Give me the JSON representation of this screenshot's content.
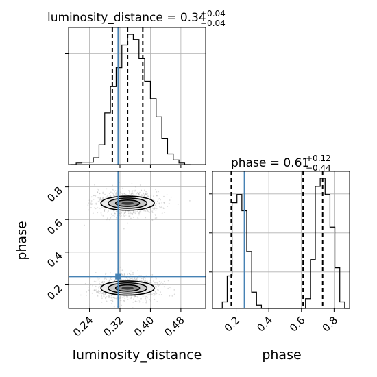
{
  "chart_data": [
    {
      "type": "histogram",
      "panel": "top-left",
      "title": {
        "text": "luminosity_distance = 0.34",
        "sup": "+0.04",
        "sub": "−0.04"
      },
      "xlim": [
        0.185,
        0.545
      ],
      "bin_edges": [
        0.19,
        0.205,
        0.22,
        0.235,
        0.25,
        0.265,
        0.28,
        0.295,
        0.31,
        0.325,
        0.34,
        0.355,
        0.37,
        0.385,
        0.4,
        0.415,
        0.43,
        0.445,
        0.46,
        0.475,
        0.49,
        0.505
      ],
      "counts": [
        0,
        2,
        3,
        3,
        9,
        26,
        68,
        103,
        128,
        158,
        172,
        165,
        140,
        110,
        87,
        63,
        34,
        14,
        6,
        2,
        0
      ],
      "quantiles": [
        0.3,
        0.34,
        0.38
      ],
      "truth": 0.315,
      "grid": true
    },
    {
      "type": "histogram",
      "panel": "bottom-right",
      "title": {
        "text": "phase = 0.61",
        "sup": "+0.12",
        "sub": "−0.44"
      },
      "xlim": [
        0.055,
        0.895
      ],
      "bin_edges": [
        0.055,
        0.085,
        0.115,
        0.145,
        0.175,
        0.205,
        0.235,
        0.265,
        0.295,
        0.325,
        0.355,
        0.385,
        0.415,
        0.445,
        0.475,
        0.505,
        0.535,
        0.565,
        0.595,
        0.625,
        0.655,
        0.685,
        0.715,
        0.745,
        0.775,
        0.805,
        0.835,
        0.865,
        0.895
      ],
      "counts": [
        0,
        0,
        8,
        40,
        130,
        140,
        120,
        70,
        20,
        4,
        0,
        0,
        0,
        0,
        0,
        0,
        0,
        0,
        0,
        12,
        60,
        150,
        160,
        140,
        100,
        50,
        8,
        0
      ],
      "quantiles": [
        0.17,
        0.61,
        0.73
      ],
      "truth": 0.25,
      "ticks": [
        0.2,
        0.4,
        0.6,
        0.8
      ],
      "tick_labels": [
        "0.2",
        "0.4",
        "0.6",
        "0.8"
      ],
      "xlabel": "phase",
      "grid": true
    },
    {
      "type": "scatter",
      "panel": "bottom-left",
      "xlim": [
        0.185,
        0.545
      ],
      "ylim": [
        0.055,
        0.895
      ],
      "x_ticks": [
        0.24,
        0.32,
        0.4,
        0.48
      ],
      "x_tick_labels": [
        "0.24",
        "0.32",
        "0.40",
        "0.48"
      ],
      "y_ticks": [
        0.2,
        0.4,
        0.6,
        0.8
      ],
      "y_tick_labels": [
        "0.2",
        "0.4",
        "0.6",
        "0.8"
      ],
      "xlabel": "luminosity_distance",
      "ylabel": "phase",
      "modes": [
        {
          "cx": 0.34,
          "cy": 0.7,
          "sx": 0.035,
          "sy": 0.035
        },
        {
          "cx": 0.34,
          "cy": 0.18,
          "sx": 0.035,
          "sy": 0.035
        }
      ],
      "truth": {
        "x": 0.315,
        "y": 0.25
      },
      "grid": true
    }
  ],
  "colors": {
    "truth": "#4682b4",
    "histogram": "#000000",
    "grid": "#b0b0b0",
    "scatter_points": "#9a9a9a",
    "density_dark": "#000000"
  }
}
